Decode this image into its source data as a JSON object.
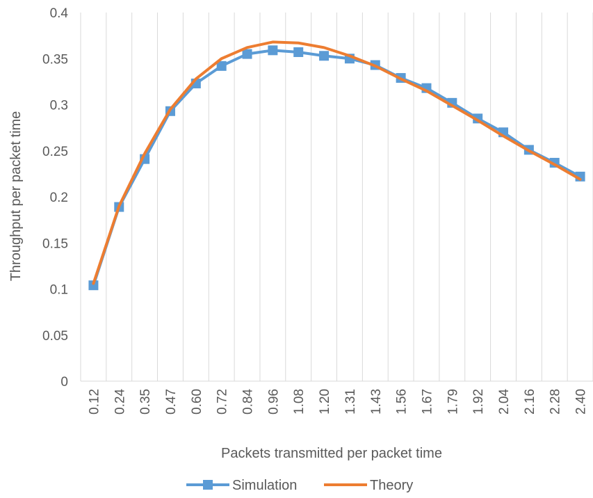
{
  "chart_data": {
    "type": "line",
    "xlabel": "Packets transmitted per packet time",
    "ylabel": "Throughput per packet time",
    "categories": [
      "0.12",
      "0.24",
      "0.35",
      "0.47",
      "0.60",
      "0.72",
      "0.84",
      "0.96",
      "1.08",
      "1.20",
      "1.31",
      "1.43",
      "1.56",
      "1.67",
      "1.79",
      "1.92",
      "2.04",
      "2.16",
      "2.28",
      "2.40"
    ],
    "ylim": [
      0,
      0.4
    ],
    "yticks": [
      "0",
      "0.05",
      "0.1",
      "0.15",
      "0.2",
      "0.25",
      "0.3",
      "0.35",
      "0.4"
    ],
    "grid": true,
    "legend_position": "bottom",
    "series": [
      {
        "name": "Simulation",
        "color": "#5b9bd5",
        "marker": "square",
        "values": [
          0.104,
          0.189,
          0.241,
          0.293,
          0.323,
          0.342,
          0.355,
          0.359,
          0.357,
          0.353,
          0.35,
          0.343,
          0.329,
          0.318,
          0.302,
          0.285,
          0.27,
          0.251,
          0.237,
          0.222
        ]
      },
      {
        "name": "Theory",
        "color": "#ed7d31",
        "marker": "none",
        "values": [
          0.106,
          0.19,
          0.247,
          0.295,
          0.328,
          0.35,
          0.362,
          0.368,
          0.367,
          0.362,
          0.353,
          0.342,
          0.328,
          0.315,
          0.299,
          0.283,
          0.266,
          0.25,
          0.235,
          0.219
        ]
      }
    ]
  }
}
